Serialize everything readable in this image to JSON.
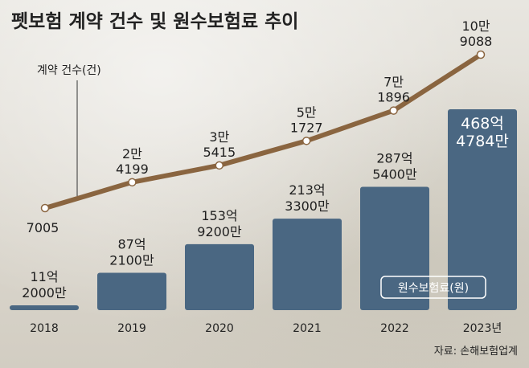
{
  "chart_data": {
    "type": "bar",
    "title": "펫보험 계약 건수 및 원수보험료 추이",
    "categories": [
      "2018",
      "2019",
      "2020",
      "2021",
      "2022",
      "2023년"
    ],
    "series": [
      {
        "name": "원수보험료(원)",
        "type": "bar",
        "values": [
          1120000000,
          8721000000,
          15392000000,
          21333000000,
          28754000000,
          46847840000
        ],
        "labels": [
          [
            "11억",
            "2000만"
          ],
          [
            "87억",
            "2100만"
          ],
          [
            "153억",
            "9200만"
          ],
          [
            "213억",
            "3300만"
          ],
          [
            "287억",
            "5400만"
          ],
          [
            "468억",
            "4784만"
          ]
        ]
      },
      {
        "name": "계약 건수(건)",
        "type": "line",
        "values": [
          7005,
          24199,
          35415,
          51727,
          71896,
          109088
        ],
        "labels": [
          [
            "7005"
          ],
          [
            "2만",
            "4199"
          ],
          [
            "3만",
            "5415"
          ],
          [
            "5만",
            "1727"
          ],
          [
            "7만",
            "1896"
          ],
          [
            "10만",
            "9088"
          ]
        ]
      }
    ],
    "source": "자료: 손해보험업계",
    "colors": {
      "bar": "#4a6782",
      "line": "#8a6540",
      "marker_fill": "#ffffff",
      "highlight_label": "#ffffff"
    }
  }
}
